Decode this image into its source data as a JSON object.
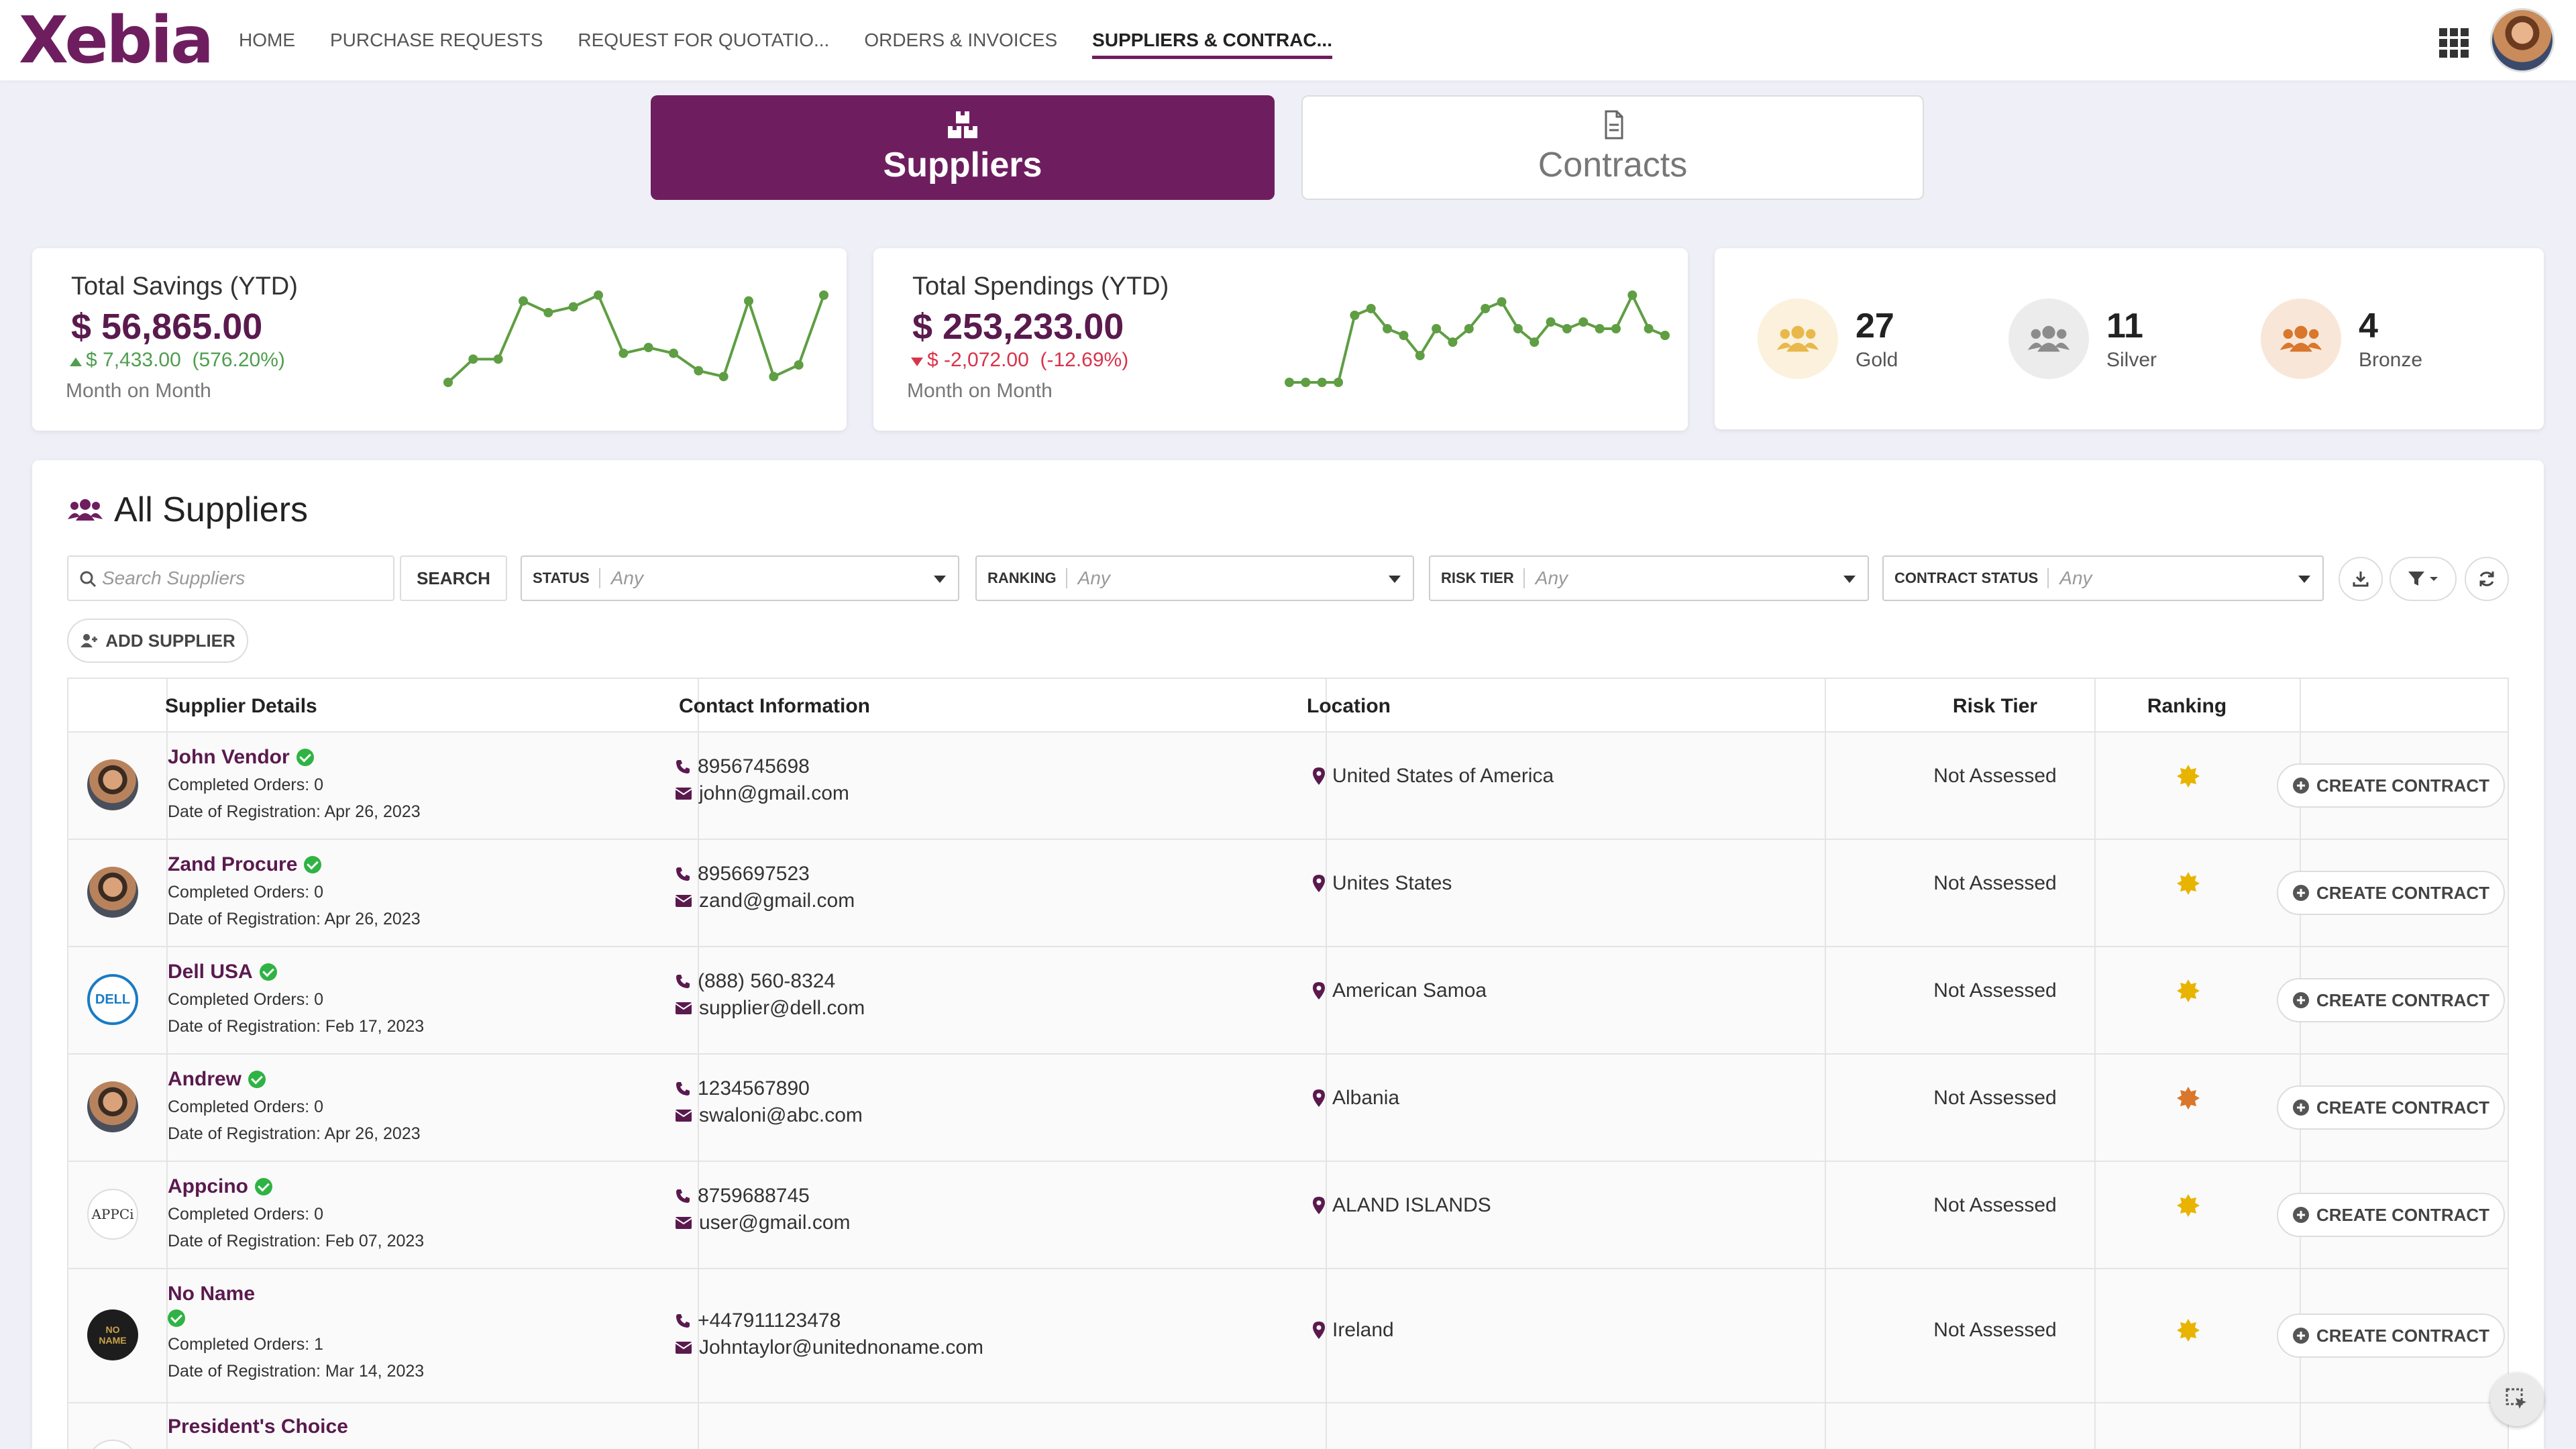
{
  "app": {
    "logo_text": "Xebia",
    "brand_color": "#6e1e5f"
  },
  "nav": {
    "items": [
      {
        "label": "HOME"
      },
      {
        "label": "PURCHASE REQUESTS"
      },
      {
        "label": "REQUEST FOR QUOTATIO..."
      },
      {
        "label": "ORDERS & INVOICES"
      },
      {
        "label": "SUPPLIERS & CONTRAC..."
      }
    ],
    "active_index": 4
  },
  "tabs": {
    "suppliers": "Suppliers",
    "contracts": "Contracts",
    "active": "suppliers"
  },
  "kpis": {
    "savings": {
      "title": "Total Savings (YTD)",
      "value": "$ 56,865.00",
      "delta": "$ 7,433.00",
      "delta_pct": "(576.20%)",
      "direction": "up",
      "subtitle": "Month on Month",
      "sparkline": [
        2,
        4,
        4,
        9,
        8,
        8.5,
        9.5,
        4.5,
        5,
        4.5,
        3,
        2.5,
        9,
        2.5,
        3.5,
        9.5
      ]
    },
    "spendings": {
      "title": "Total Spendings (YTD)",
      "value": "$ 253,233.00",
      "delta": "$ -2,072.00",
      "delta_pct": "(-12.69%)",
      "direction": "down",
      "subtitle": "Month on Month",
      "sparkline": [
        1,
        1,
        1,
        1,
        6,
        6.5,
        5,
        4.5,
        3,
        5,
        4,
        5,
        6.5,
        7,
        5,
        4,
        5.5,
        5,
        5.5,
        5,
        5,
        7.5,
        5,
        4.5
      ]
    },
    "tiers": [
      {
        "count": "27",
        "label": "Gold",
        "color": "#e8b84a",
        "bg": "#fbf1dc"
      },
      {
        "count": "11",
        "label": "Silver",
        "color": "#8c8c8c",
        "bg": "#ececec"
      },
      {
        "count": "4",
        "label": "Bronze",
        "color": "#d9772c",
        "bg": "#f8e7d8"
      }
    ]
  },
  "suppliers_panel": {
    "title": "All Suppliers",
    "search_placeholder": "Search Suppliers",
    "search_button": "SEARCH",
    "add_button": "ADD SUPPLIER",
    "filters": [
      {
        "label": "STATUS",
        "value": "Any"
      },
      {
        "label": "RANKING",
        "value": "Any"
      },
      {
        "label": "RISK TIER",
        "value": "Any"
      },
      {
        "label": "CONTRACT STATUS",
        "value": "Any"
      }
    ],
    "columns": [
      "Supplier Details",
      "Contact Information",
      "Location",
      "Risk Tier",
      "Ranking"
    ],
    "rows": [
      {
        "name": "John Vendor",
        "orders": "Completed Orders: 0",
        "registered": "Date of Registration: Apr 26, 2023",
        "phone": "8956745698",
        "email": "john@gmail.com",
        "location": "United States of America",
        "risk": "Not Assessed",
        "rank_color": "#e8b400",
        "action": "CREATE CONTRACT",
        "avatar": "photo"
      },
      {
        "name": "Zand Procure",
        "orders": "Completed Orders: 0",
        "registered": "Date of Registration: Apr 26, 2023",
        "phone": "8956697523",
        "email": "zand@gmail.com",
        "location": "Unites States",
        "risk": "Not Assessed",
        "rank_color": "#e8b400",
        "action": "CREATE CONTRACT",
        "avatar": "photo"
      },
      {
        "name": "Dell USA",
        "orders": "Completed Orders: 0",
        "registered": "Date of Registration: Feb 17, 2023",
        "phone": "(888) 560-8324",
        "email": "supplier@dell.com",
        "location": "American Samoa",
        "risk": "Not Assessed",
        "rank_color": "#e8b400",
        "action": "CREATE CONTRACT",
        "avatar": "DELL"
      },
      {
        "name": "Andrew",
        "orders": "Completed Orders: 0",
        "registered": "Date of Registration: Apr 26, 2023",
        "phone": "1234567890",
        "email": "swaloni@abc.com",
        "location": "Albania",
        "risk": "Not Assessed",
        "rank_color": "#d9772c",
        "action": "CREATE CONTRACT",
        "avatar": "photo"
      },
      {
        "name": "Appcino",
        "orders": "Completed Orders: 0",
        "registered": "Date of Registration: Feb 07, 2023",
        "phone": "8759688745",
        "email": "user@gmail.com",
        "location": "ALAND ISLANDS",
        "risk": "Not Assessed",
        "rank_color": "#e8b400",
        "action": "CREATE CONTRACT",
        "avatar": "APPCi"
      },
      {
        "name": "No Name",
        "orders": "Completed Orders: 1",
        "registered": "Date of Registration: Mar 14, 2023",
        "phone": "+447911123478",
        "email": "Johntaylor@unitednoname.com",
        "location": "Ireland",
        "risk": "Not Assessed",
        "rank_color": "#e8b400",
        "action": "CREATE CONTRACT",
        "avatar": "NO NAME"
      },
      {
        "name": "President's Choice"
      }
    ]
  }
}
